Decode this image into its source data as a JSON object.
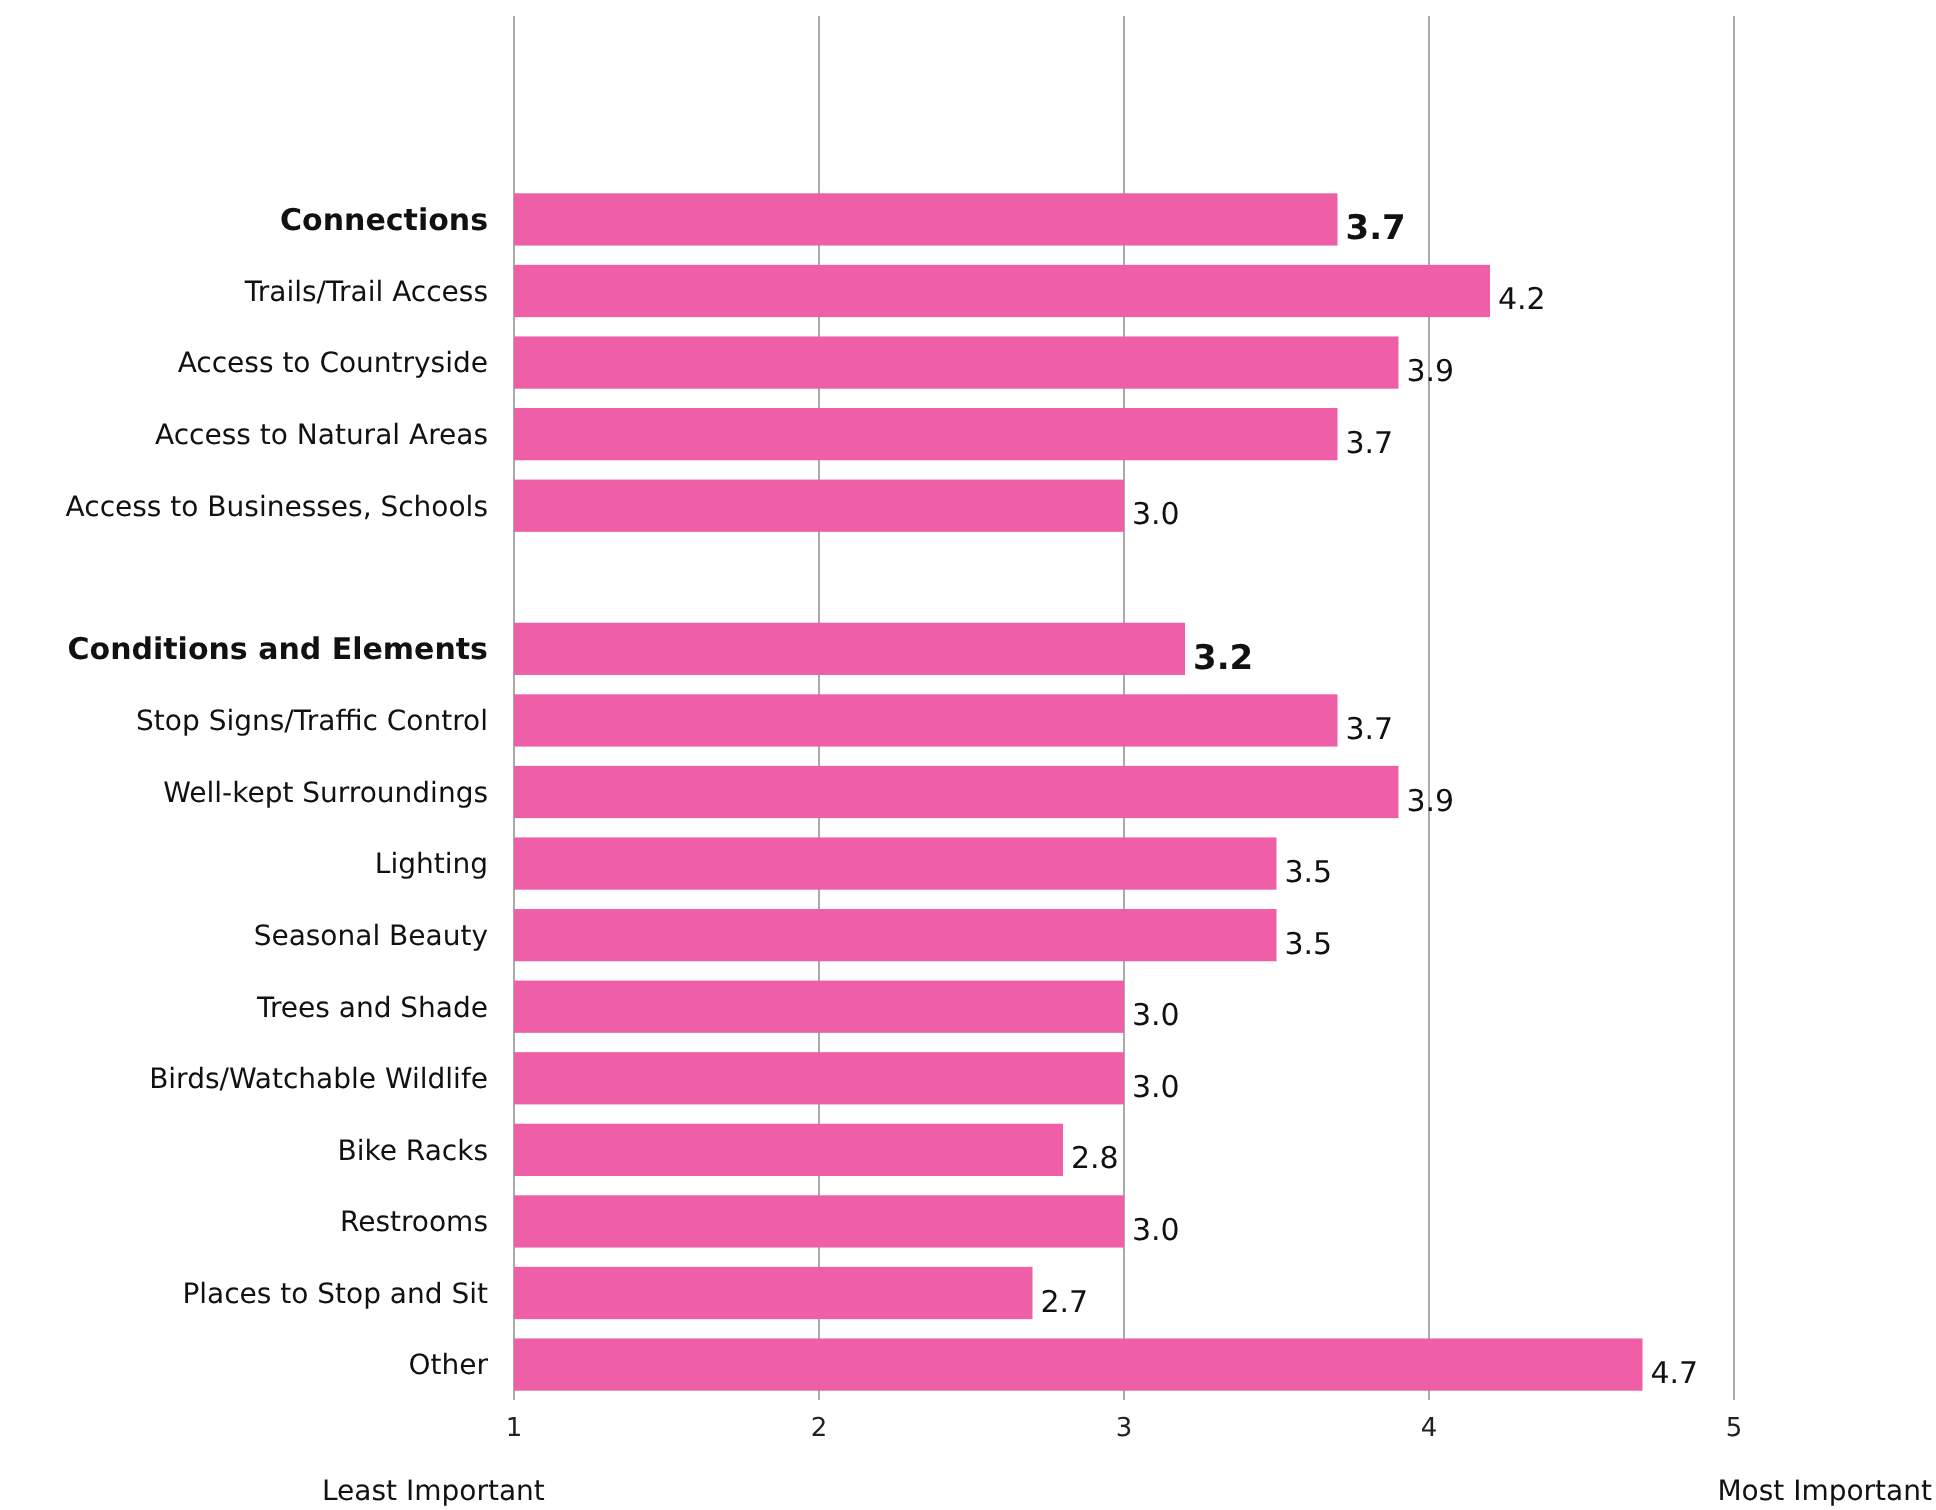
{
  "chart_data": {
    "type": "bar",
    "orientation": "horizontal",
    "categories": [
      "Connections",
      "Trails/Trail Access",
      "Access to Countryside",
      "Access to Natural Areas",
      "Access to Businesses, Schools",
      null,
      "Conditions and Elements",
      "Stop Signs/Traffic Control",
      "Well-kept Surroundings",
      "Lighting",
      "Seasonal Beauty",
      "Trees and Shade",
      "Birds/Watchable Wildlife",
      "Bike Racks",
      "Restrooms",
      "Places to Stop and Sit",
      "Other"
    ],
    "values": [
      3.7,
      4.2,
      3.9,
      3.7,
      3.0,
      null,
      3.2,
      3.7,
      3.9,
      3.5,
      3.5,
      3.0,
      3.0,
      2.8,
      3.0,
      2.7,
      4.7
    ],
    "value_labels": [
      "3.7",
      "4.2",
      "3.9",
      "3.7",
      "3.0",
      null,
      "3.2",
      "3.7",
      "3.9",
      "3.5",
      "3.5",
      "3.0",
      "3.0",
      "2.8",
      "3.0",
      "2.7",
      "4.7"
    ],
    "color": "#ef5fa7",
    "xlim": [
      1,
      5
    ],
    "xticks": [
      1,
      2,
      3,
      4,
      5
    ],
    "grid": "x",
    "annotations": [
      "Least Important",
      "Most Important"
    ]
  }
}
